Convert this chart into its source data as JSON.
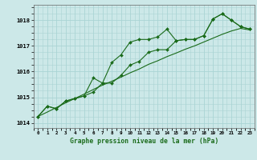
{
  "title": "Graphe pression niveau de la mer (hPa)",
  "background_color": "#cce8e8",
  "grid_color": "#aad4d4",
  "line_color": "#1a6b1a",
  "x_labels": [
    "0",
    "1",
    "2",
    "3",
    "4",
    "5",
    "6",
    "7",
    "8",
    "9",
    "10",
    "11",
    "12",
    "13",
    "14",
    "15",
    "16",
    "17",
    "18",
    "19",
    "20",
    "21",
    "22",
    "23"
  ],
  "ylim": [
    1013.8,
    1018.6
  ],
  "yticks": [
    1014,
    1015,
    1016,
    1017,
    1018
  ],
  "series1": [
    1014.25,
    1014.65,
    1014.55,
    1014.85,
    1014.95,
    1015.05,
    1015.75,
    1015.55,
    1016.35,
    1016.65,
    1017.15,
    1017.25,
    1017.25,
    1017.35,
    1017.65,
    1017.2,
    1017.25,
    1017.25,
    1017.4,
    1018.05,
    1018.25,
    1018.0,
    1017.75,
    1017.65
  ],
  "series2": [
    1014.25,
    1014.65,
    1014.55,
    1014.85,
    1014.95,
    1015.05,
    1015.2,
    1015.55,
    1015.55,
    1015.85,
    1016.25,
    1016.4,
    1016.75,
    1016.85,
    1016.85,
    1017.2,
    1017.25,
    1017.25,
    1017.4,
    1018.05,
    1018.25,
    1018.0,
    1017.75,
    1017.65
  ],
  "trend": [
    1014.25,
    1014.42,
    1014.6,
    1014.78,
    1014.95,
    1015.12,
    1015.3,
    1015.47,
    1015.62,
    1015.78,
    1015.95,
    1016.1,
    1016.28,
    1016.42,
    1016.58,
    1016.72,
    1016.87,
    1017.0,
    1017.15,
    1017.3,
    1017.45,
    1017.58,
    1017.68,
    1017.62
  ]
}
